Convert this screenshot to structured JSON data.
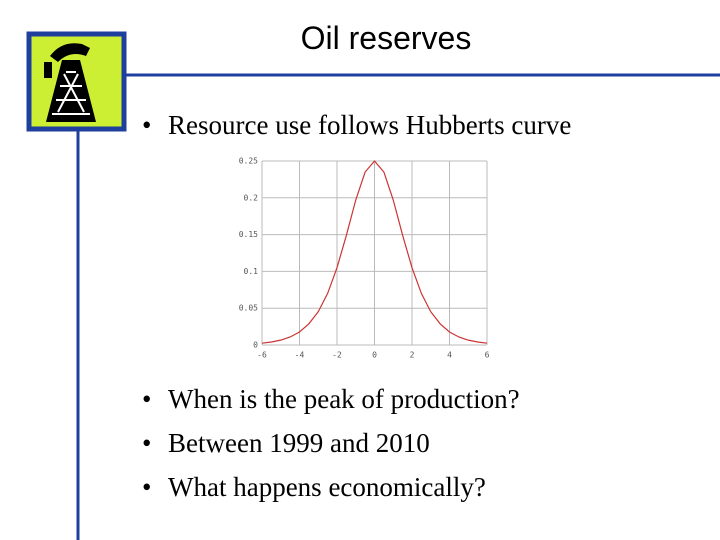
{
  "title": "Oil reserves",
  "bullets_top": [
    "Resource use follows Hubberts curve"
  ],
  "chart_data": {
    "type": "line",
    "x": [
      -6,
      -5.5,
      -5,
      -4.5,
      -4,
      -3.5,
      -3,
      -2.5,
      -2,
      -1.5,
      -1,
      -0.5,
      0,
      0.5,
      1,
      1.5,
      2,
      2.5,
      3,
      3.5,
      4,
      4.5,
      5,
      5.5,
      6
    ],
    "values": [
      0.0025,
      0.0041,
      0.0066,
      0.0109,
      0.0177,
      0.0288,
      0.0452,
      0.0701,
      0.105,
      0.149,
      0.197,
      0.235,
      0.25,
      0.235,
      0.197,
      0.149,
      0.105,
      0.0701,
      0.0452,
      0.0288,
      0.0177,
      0.0109,
      0.0066,
      0.0041,
      0.0025
    ],
    "color": "#cc3333",
    "xlim": [
      -6,
      6
    ],
    "xticks": [
      -6,
      -4,
      -2,
      0,
      2,
      4,
      6
    ],
    "ylim": [
      0,
      0.25
    ],
    "yticks": [
      0,
      0.05,
      0.1,
      0.15,
      0.2,
      0.25
    ],
    "grid": true
  },
  "bullets_bottom": [
    "When is the peak of production?",
    "Between 1999 and 2010",
    "What happens economically?"
  ]
}
